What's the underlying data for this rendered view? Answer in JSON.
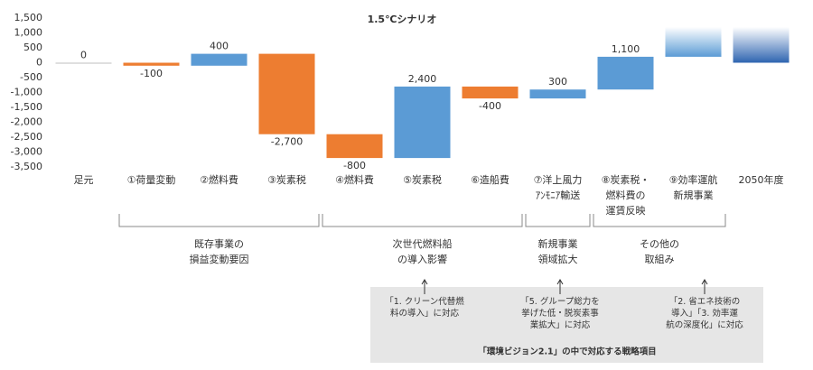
{
  "chart_data": {
    "type": "waterfall",
    "title": "1.5℃シナリオ",
    "categories": [
      "足元",
      "①荷量変動",
      "②燃料費",
      "③炭素税",
      "④燃料費",
      "⑤炭素税",
      "⑥造船費",
      "⑦洋上風力\nｱﾝﾓﾆｱ輸送",
      "⑧炭素税・\n燃料費の\n運賃反映",
      "⑨効率運航\n新規事業",
      "2050年度"
    ],
    "values": [
      0,
      -100,
      400,
      -2700,
      -800,
      2400,
      -400,
      300,
      1100,
      1000,
      1200
    ],
    "value_labels": [
      "0",
      "-100",
      "400",
      "-2,700",
      "-800",
      "2,400",
      "-400",
      "300",
      "1,100",
      null,
      null
    ],
    "totals": [
      false,
      false,
      false,
      false,
      false,
      false,
      false,
      false,
      false,
      false,
      true
    ],
    "faded": [
      false,
      false,
      false,
      false,
      false,
      false,
      false,
      false,
      false,
      true,
      true
    ],
    "colors": {
      "increase": "#5b9bd5",
      "decrease": "#ed7d31",
      "total": "#2e64b0",
      "zero": "#bfbfbf"
    },
    "ylim": [
      -3500,
      1500
    ],
    "yticks": [
      {
        "value": 1500,
        "label": "1,500"
      },
      {
        "value": 1000,
        "label": "1,000"
      },
      500,
      0,
      -500,
      {
        "value": -1000,
        "label": "-1,000"
      },
      {
        "value": -1500,
        "label": "-1,500"
      },
      {
        "value": -2000,
        "label": "-2,000"
      },
      {
        "value": -2500,
        "label": "-2,500"
      },
      {
        "value": -3000,
        "label": "-3,000"
      },
      {
        "value": -3500,
        "label": "-3,500"
      }
    ],
    "groups": [
      "既存事業の\n損益変動要因",
      "次世代燃料船\nの導入影響",
      "新規事業\n領域拡大",
      "その他の\n取組み"
    ],
    "notes": [
      "「1. クリーン代替燃\n料の導入」に対応",
      "「5. グループ総力を\n挙げた低・脱炭素事\n業拡大」に対応",
      "「2. 省エネ技術の\n導入」「3. 効率運\n航の深度化」に対応"
    ],
    "notes_title": "「環境ビジョン2.1」の中で対応する戦略項目"
  }
}
